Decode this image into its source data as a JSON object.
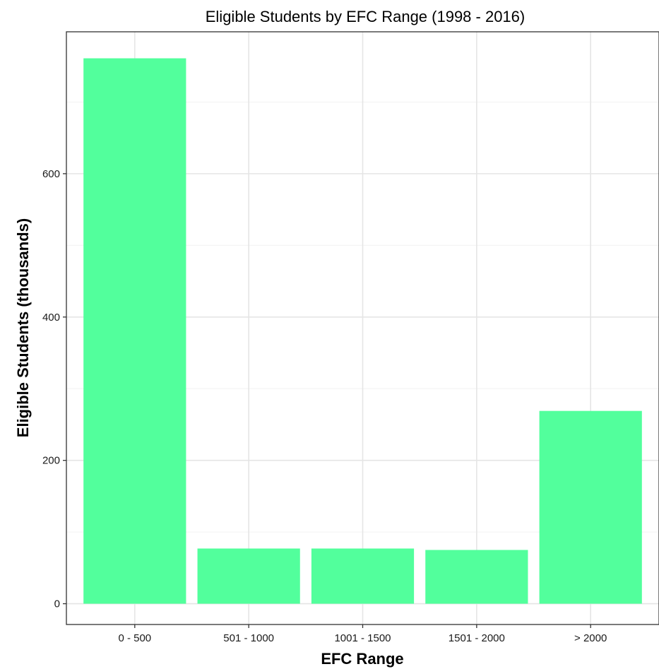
{
  "chart_data": {
    "type": "bar",
    "title": "Eligible Students by EFC Range (1998 - 2016)",
    "xlabel": "EFC Range",
    "ylabel": "Eligible Students (thousands)",
    "categories": [
      "0 - 500",
      "501 - 1000",
      "1001 - 1500",
      "1501 - 2000",
      "> 2000"
    ],
    "values": [
      761,
      77,
      77,
      75,
      269
    ],
    "ylim": [
      -29,
      798
    ],
    "yticks": [
      0,
      200,
      400,
      600
    ],
    "y_tick_labels": [
      "0",
      "200",
      "400",
      "600"
    ],
    "grid": true,
    "bar_color": "#52ff9c",
    "legend": "none"
  }
}
